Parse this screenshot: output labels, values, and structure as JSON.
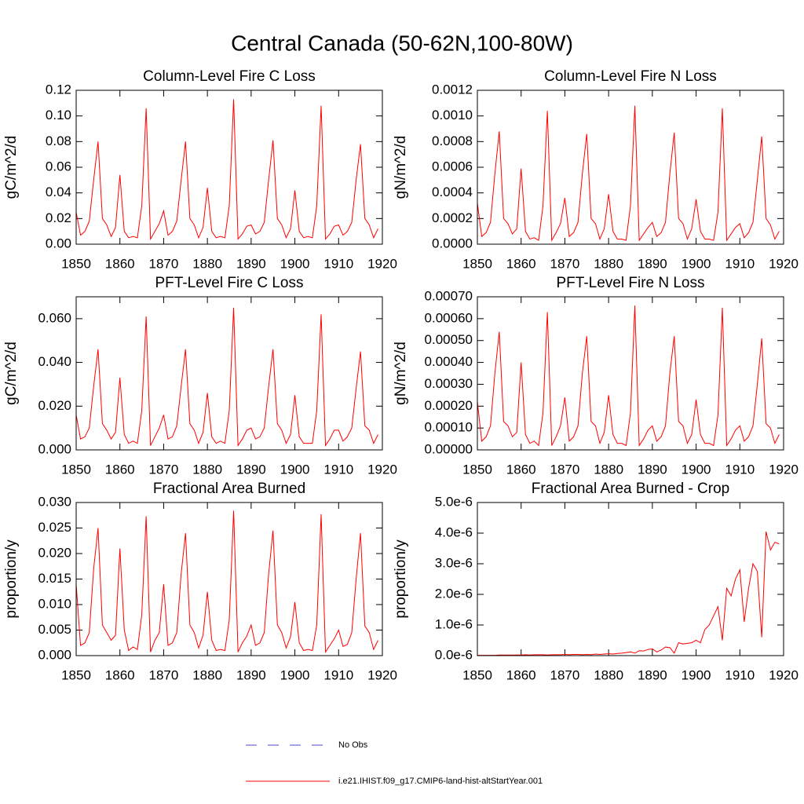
{
  "title": "Central Canada (50-62N,100-80W)",
  "legend": [
    {
      "label": "No Obs",
      "color": "#4a4ad0",
      "dash": true
    },
    {
      "label": "i.e21.IHIST.f09_g17.CMIP6-land-hist-altStartYear.001",
      "color": "#ff0000",
      "dash": false
    }
  ],
  "chart_data": [
    {
      "type": "line",
      "title": "Column-Level Fire C Loss",
      "ylabel": "gC/m^2/d",
      "color": "#ff0000",
      "x": [
        1850,
        1851,
        1852,
        1853,
        1854,
        1855,
        1856,
        1857,
        1858,
        1859,
        1860,
        1861,
        1862,
        1863,
        1864,
        1865,
        1866,
        1867,
        1868,
        1869,
        1870,
        1871,
        1872,
        1873,
        1874,
        1875,
        1876,
        1877,
        1878,
        1879,
        1880,
        1881,
        1882,
        1883,
        1884,
        1885,
        1886,
        1887,
        1888,
        1889,
        1890,
        1891,
        1892,
        1893,
        1894,
        1895,
        1896,
        1897,
        1898,
        1899,
        1900,
        1901,
        1902,
        1903,
        1904,
        1905,
        1906,
        1907,
        1908,
        1909,
        1910,
        1911,
        1912,
        1913,
        1914,
        1915,
        1916,
        1917,
        1918,
        1919
      ],
      "values": [
        0.025,
        0.007,
        0.01,
        0.018,
        0.05,
        0.08,
        0.02,
        0.015,
        0.006,
        0.013,
        0.054,
        0.01,
        0.005,
        0.006,
        0.005,
        0.03,
        0.106,
        0.004,
        0.01,
        0.016,
        0.026,
        0.007,
        0.01,
        0.018,
        0.05,
        0.08,
        0.02,
        0.015,
        0.005,
        0.013,
        0.044,
        0.01,
        0.005,
        0.006,
        0.005,
        0.03,
        0.113,
        0.004,
        0.008,
        0.014,
        0.015,
        0.008,
        0.01,
        0.017,
        0.05,
        0.081,
        0.02,
        0.015,
        0.005,
        0.012,
        0.042,
        0.01,
        0.005,
        0.006,
        0.005,
        0.03,
        0.108,
        0.004,
        0.008,
        0.014,
        0.015,
        0.007,
        0.01,
        0.017,
        0.05,
        0.078,
        0.02,
        0.015,
        0.005,
        0.012
      ],
      "xlim": [
        1850,
        1920
      ],
      "xticks": [
        1850,
        1860,
        1870,
        1880,
        1890,
        1900,
        1910,
        1920
      ],
      "ylim": [
        0,
        0.12
      ],
      "yticks": [
        {
          "value": 0,
          "label": "0.00"
        },
        0.02,
        0.04,
        0.06,
        0.08,
        {
          "value": 0.1,
          "label": "0.10"
        },
        0.12
      ]
    },
    {
      "type": "line",
      "title": "Column-Level Fire N Loss",
      "ylabel": "gN/m^2/d",
      "color": "#ff0000",
      "x": [
        1850,
        1851,
        1852,
        1853,
        1854,
        1855,
        1856,
        1857,
        1858,
        1859,
        1860,
        1861,
        1862,
        1863,
        1864,
        1865,
        1866,
        1867,
        1868,
        1869,
        1870,
        1871,
        1872,
        1873,
        1874,
        1875,
        1876,
        1877,
        1878,
        1879,
        1880,
        1881,
        1882,
        1883,
        1884,
        1885,
        1886,
        1887,
        1888,
        1889,
        1890,
        1891,
        1892,
        1893,
        1894,
        1895,
        1896,
        1897,
        1898,
        1899,
        1900,
        1901,
        1902,
        1903,
        1904,
        1905,
        1906,
        1907,
        1908,
        1909,
        1910,
        1911,
        1912,
        1913,
        1914,
        1915,
        1916,
        1917,
        1918,
        1919
      ],
      "values": [
        0.00032,
        6e-05,
        9e-05,
        0.00017,
        0.00055,
        0.00088,
        0.0002,
        0.00016,
        8e-05,
        0.00012,
        0.00059,
        0.0001,
        4e-05,
        5e-05,
        3e-05,
        0.0003,
        0.00104,
        3e-05,
        9e-05,
        0.00016,
        0.00036,
        6e-05,
        9e-05,
        0.00017,
        0.00055,
        0.00086,
        0.0002,
        0.00016,
        4e-05,
        0.00012,
        0.00039,
        0.0001,
        4e-05,
        4e-05,
        3e-05,
        0.0003,
        0.00108,
        3e-05,
        8e-05,
        0.00013,
        0.00017,
        6e-05,
        9e-05,
        0.00017,
        0.00055,
        0.00087,
        0.0002,
        0.00016,
        4e-05,
        0.00012,
        0.00035,
        0.0001,
        4e-05,
        4e-05,
        3e-05,
        0.00025,
        0.00106,
        3e-05,
        8e-05,
        0.00013,
        0.00016,
        5e-05,
        9e-05,
        0.00017,
        0.0005,
        0.00084,
        0.0002,
        0.00015,
        4e-05,
        0.0001
      ],
      "xlim": [
        1850,
        1920
      ],
      "xticks": [
        1850,
        1860,
        1870,
        1880,
        1890,
        1900,
        1910,
        1920
      ],
      "ylim": [
        0,
        0.0012
      ],
      "yticks": [
        {
          "value": 0,
          "label": "0.0000"
        },
        0.0002,
        0.0004,
        0.0006,
        0.0008,
        {
          "value": 0.001,
          "label": "0.0010"
        },
        0.0012
      ]
    },
    {
      "type": "line",
      "title": "PFT-Level Fire C Loss",
      "ylabel": "gC/m^2/d",
      "color": "#ff0000",
      "x": [
        1850,
        1851,
        1852,
        1853,
        1854,
        1855,
        1856,
        1857,
        1858,
        1859,
        1860,
        1861,
        1862,
        1863,
        1864,
        1865,
        1866,
        1867,
        1868,
        1869,
        1870,
        1871,
        1872,
        1873,
        1874,
        1875,
        1876,
        1877,
        1878,
        1879,
        1880,
        1881,
        1882,
        1883,
        1884,
        1885,
        1886,
        1887,
        1888,
        1889,
        1890,
        1891,
        1892,
        1893,
        1894,
        1895,
        1896,
        1897,
        1898,
        1899,
        1900,
        1901,
        1902,
        1903,
        1904,
        1905,
        1906,
        1907,
        1908,
        1909,
        1910,
        1911,
        1912,
        1913,
        1914,
        1915,
        1916,
        1917,
        1918,
        1919
      ],
      "values": [
        0.016,
        0.005,
        0.006,
        0.01,
        0.029,
        0.046,
        0.012,
        0.009,
        0.005,
        0.008,
        0.033,
        0.007,
        0.003,
        0.004,
        0.003,
        0.018,
        0.061,
        0.002,
        0.006,
        0.01,
        0.016,
        0.005,
        0.006,
        0.011,
        0.029,
        0.046,
        0.012,
        0.009,
        0.003,
        0.008,
        0.026,
        0.006,
        0.003,
        0.004,
        0.003,
        0.018,
        0.065,
        0.002,
        0.005,
        0.009,
        0.01,
        0.005,
        0.006,
        0.01,
        0.029,
        0.046,
        0.012,
        0.009,
        0.003,
        0.007,
        0.025,
        0.006,
        0.003,
        0.003,
        0.003,
        0.018,
        0.062,
        0.002,
        0.005,
        0.009,
        0.009,
        0.004,
        0.006,
        0.01,
        0.028,
        0.045,
        0.011,
        0.009,
        0.003,
        0.007
      ],
      "xlim": [
        1850,
        1920
      ],
      "xticks": [
        1850,
        1860,
        1870,
        1880,
        1890,
        1900,
        1910,
        1920
      ],
      "ylim": [
        0,
        0.07
      ],
      "yticks": [
        {
          "value": 0,
          "label": "0.000"
        },
        {
          "value": 0.02,
          "label": "0.020"
        },
        {
          "value": 0.04,
          "label": "0.040"
        },
        {
          "value": 0.06,
          "label": "0.060"
        }
      ]
    },
    {
      "type": "line",
      "title": "PFT-Level Fire N Loss",
      "ylabel": "gN/m^2/d",
      "color": "#ff0000",
      "x": [
        1850,
        1851,
        1852,
        1853,
        1854,
        1855,
        1856,
        1857,
        1858,
        1859,
        1860,
        1861,
        1862,
        1863,
        1864,
        1865,
        1866,
        1867,
        1868,
        1869,
        1870,
        1871,
        1872,
        1873,
        1874,
        1875,
        1876,
        1877,
        1878,
        1879,
        1880,
        1881,
        1882,
        1883,
        1884,
        1885,
        1886,
        1887,
        1888,
        1889,
        1890,
        1891,
        1892,
        1893,
        1894,
        1895,
        1896,
        1897,
        1898,
        1899,
        1900,
        1901,
        1902,
        1903,
        1904,
        1905,
        1906,
        1907,
        1908,
        1909,
        1910,
        1911,
        1912,
        1913,
        1914,
        1915,
        1916,
        1917,
        1918,
        1919
      ],
      "values": [
        0.00022,
        4e-05,
        6e-05,
        0.00011,
        0.00035,
        0.00054,
        0.00013,
        0.00011,
        6e-05,
        8e-05,
        0.0004,
        7e-05,
        3e-05,
        4e-05,
        2e-05,
        0.00017,
        0.00063,
        2e-05,
        6e-05,
        0.00011,
        0.00024,
        4e-05,
        6e-05,
        0.00011,
        0.00035,
        0.00052,
        0.00013,
        0.00011,
        3e-05,
        8e-05,
        0.00025,
        7e-05,
        3e-05,
        3e-05,
        2e-05,
        0.00017,
        0.00066,
        2e-05,
        5e-05,
        9e-05,
        0.00011,
        4e-05,
        6e-05,
        0.00011,
        0.00035,
        0.00052,
        0.00013,
        0.00011,
        3e-05,
        7e-05,
        0.00023,
        7e-05,
        3e-05,
        3e-05,
        2e-05,
        0.00016,
        0.00065,
        2e-05,
        5e-05,
        9e-05,
        0.00011,
        4e-05,
        6e-05,
        0.00011,
        0.0003,
        0.00051,
        0.00012,
        0.0001,
        3e-05,
        7e-05
      ],
      "xlim": [
        1850,
        1920
      ],
      "xticks": [
        1850,
        1860,
        1870,
        1880,
        1890,
        1900,
        1910,
        1920
      ],
      "ylim": [
        0,
        0.0007
      ],
      "yticks": [
        {
          "value": 0,
          "label": "0.00000"
        },
        {
          "value": 0.0001,
          "label": "0.00010"
        },
        {
          "value": 0.0002,
          "label": "0.00020"
        },
        {
          "value": 0.0003,
          "label": "0.00030"
        },
        {
          "value": 0.0004,
          "label": "0.00040"
        },
        {
          "value": 0.0005,
          "label": "0.00050"
        },
        {
          "value": 0.0006,
          "label": "0.00060"
        },
        {
          "value": 0.0007,
          "label": "0.00070"
        }
      ]
    },
    {
      "type": "line",
      "title": "Fractional Area Burned",
      "ylabel": "proportion/y",
      "color": "#ff0000",
      "x": [
        1850,
        1851,
        1852,
        1853,
        1854,
        1855,
        1856,
        1857,
        1858,
        1859,
        1860,
        1861,
        1862,
        1863,
        1864,
        1865,
        1866,
        1867,
        1868,
        1869,
        1870,
        1871,
        1872,
        1873,
        1874,
        1875,
        1876,
        1877,
        1878,
        1879,
        1880,
        1881,
        1882,
        1883,
        1884,
        1885,
        1886,
        1887,
        1888,
        1889,
        1890,
        1891,
        1892,
        1893,
        1894,
        1895,
        1896,
        1897,
        1898,
        1899,
        1900,
        1901,
        1902,
        1903,
        1904,
        1905,
        1906,
        1907,
        1908,
        1909,
        1910,
        1911,
        1912,
        1913,
        1914,
        1915,
        1916,
        1917,
        1918,
        1919
      ],
      "values": [
        0.014,
        0.002,
        0.0025,
        0.0045,
        0.017,
        0.025,
        0.006,
        0.0045,
        0.003,
        0.004,
        0.021,
        0.005,
        0.001,
        0.0017,
        0.0012,
        0.008,
        0.0273,
        0.0007,
        0.003,
        0.0045,
        0.014,
        0.002,
        0.0025,
        0.0045,
        0.016,
        0.024,
        0.006,
        0.0045,
        0.0015,
        0.004,
        0.0125,
        0.003,
        0.001,
        0.0012,
        0.001,
        0.007,
        0.0284,
        0.0007,
        0.0025,
        0.0038,
        0.006,
        0.002,
        0.0025,
        0.0045,
        0.016,
        0.0245,
        0.006,
        0.0045,
        0.0015,
        0.0037,
        0.0105,
        0.0025,
        0.001,
        0.0012,
        0.001,
        0.006,
        0.0277,
        0.0007,
        0.002,
        0.0033,
        0.005,
        0.0018,
        0.0022,
        0.0045,
        0.015,
        0.024,
        0.0058,
        0.0045,
        0.0012,
        0.003
      ],
      "xlim": [
        1850,
        1920
      ],
      "xticks": [
        1850,
        1860,
        1870,
        1880,
        1890,
        1900,
        1910,
        1920
      ],
      "ylim": [
        0,
        0.03
      ],
      "yticks": [
        {
          "value": 0,
          "label": "0.000"
        },
        0.005,
        {
          "value": 0.01,
          "label": "0.010"
        },
        0.015,
        {
          "value": 0.02,
          "label": "0.020"
        },
        0.025,
        {
          "value": 0.03,
          "label": "0.030"
        }
      ]
    },
    {
      "type": "line",
      "title": "Fractional Area Burned - Crop",
      "ylabel": "proportion/y",
      "color": "#ff0000",
      "x": [
        1850,
        1851,
        1852,
        1853,
        1854,
        1855,
        1856,
        1857,
        1858,
        1859,
        1860,
        1861,
        1862,
        1863,
        1864,
        1865,
        1866,
        1867,
        1868,
        1869,
        1870,
        1871,
        1872,
        1873,
        1874,
        1875,
        1876,
        1877,
        1878,
        1879,
        1880,
        1881,
        1882,
        1883,
        1884,
        1885,
        1886,
        1887,
        1888,
        1889,
        1890,
        1891,
        1892,
        1893,
        1894,
        1895,
        1896,
        1897,
        1898,
        1899,
        1900,
        1901,
        1902,
        1903,
        1904,
        1905,
        1906,
        1907,
        1908,
        1909,
        1910,
        1911,
        1912,
        1913,
        1914,
        1915,
        1916,
        1917,
        1918,
        1919
      ],
      "values": [
        1e-08,
        1e-08,
        1e-08,
        1e-08,
        1e-08,
        2e-08,
        2e-08,
        2e-08,
        2e-08,
        2e-08,
        2e-08,
        3e-08,
        2e-08,
        3e-08,
        3e-08,
        3e-08,
        2e-08,
        3e-08,
        3e-08,
        3e-08,
        4e-08,
        3e-08,
        4e-08,
        4e-08,
        3e-08,
        4e-08,
        3e-08,
        5e-08,
        4e-08,
        5e-08,
        6e-08,
        5e-08,
        7e-08,
        8e-08,
        1e-07,
        1.2e-07,
        8e-08,
        1.6e-07,
        1.5e-07,
        2e-07,
        2.2e-07,
        1.2e-07,
        1.8e-07,
        2.8e-07,
        2.6e-07,
        8e-08,
        4.2e-07,
        3.8e-07,
        4e-07,
        4.2e-07,
        5e-07,
        4.2e-07,
        8.5e-07,
        1e-06,
        1.3e-06,
        1.6e-06,
        5e-07,
        2.2e-06,
        1.95e-06,
        2.5e-06,
        2.8e-06,
        1.1e-06,
        2.2e-06,
        3e-06,
        2.75e-06,
        6e-07,
        4.05e-06,
        3.45e-06,
        3.7e-06,
        3.65e-06
      ],
      "xlim": [
        1850,
        1920
      ],
      "xticks": [
        1850,
        1860,
        1870,
        1880,
        1890,
        1900,
        1910,
        1920
      ],
      "ylim": [
        0,
        5e-06
      ],
      "yticks": [
        {
          "value": 0,
          "label": "0.0e-6"
        },
        {
          "value": 1e-06,
          "label": "1.0e-6"
        },
        {
          "value": 2e-06,
          "label": "2.0e-6"
        },
        {
          "value": 3e-06,
          "label": "3.0e-6"
        },
        {
          "value": 4e-06,
          "label": "4.0e-6"
        },
        {
          "value": 5e-06,
          "label": "5.0e-6"
        }
      ]
    }
  ]
}
